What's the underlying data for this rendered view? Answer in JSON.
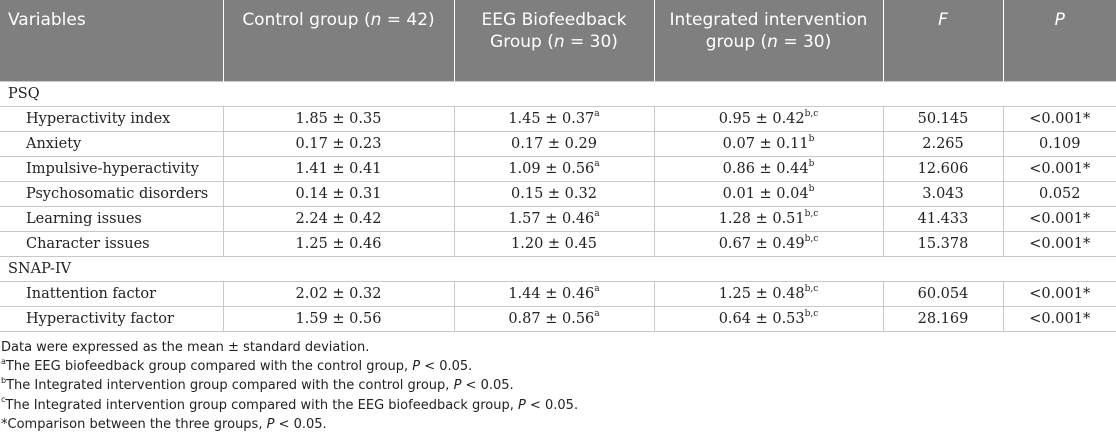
{
  "header": {
    "variables": "Variables",
    "control_label": "Control group (",
    "control_n": "n",
    "control_count": " = 42)",
    "eeg_label": "EEG Biofeedback Group (",
    "eeg_n": "n",
    "eeg_count": " = 30)",
    "integrated_label": "Integrated intervention group (",
    "integrated_n": "n",
    "integrated_count": " = 30)",
    "f": "F",
    "p": "P"
  },
  "sections": [
    {
      "title": "PSQ",
      "rows": [
        {
          "name": "Hyperactivity index",
          "control": "1.85 ± 0.35",
          "control_sup": "",
          "eeg": "1.45 ± 0.37",
          "eeg_sup": "a",
          "integrated": "0.95 ± 0.42",
          "integrated_sup": "b,c",
          "f": "50.145",
          "p": "<0.001*"
        },
        {
          "name": "Anxiety",
          "control": "0.17 ± 0.23",
          "control_sup": "",
          "eeg": "0.17 ± 0.29",
          "eeg_sup": "",
          "integrated": "0.07 ± 0.11",
          "integrated_sup": "b",
          "f": "2.265",
          "p": "0.109"
        },
        {
          "name": "Impulsive-hyperactivity",
          "control": "1.41 ± 0.41",
          "control_sup": "",
          "eeg": "1.09 ± 0.56",
          "eeg_sup": "a",
          "integrated": "0.86 ± 0.44",
          "integrated_sup": "b",
          "f": "12.606",
          "p": "<0.001*"
        },
        {
          "name": "Psychosomatic disorders",
          "control": "0.14 ± 0.31",
          "control_sup": "",
          "eeg": "0.15 ± 0.32",
          "eeg_sup": "",
          "integrated": "0.01 ± 0.04",
          "integrated_sup": "b",
          "f": "3.043",
          "p": "0.052"
        },
        {
          "name": "Learning issues",
          "control": "2.24 ± 0.42",
          "control_sup": "",
          "eeg": "1.57 ± 0.46",
          "eeg_sup": "a",
          "integrated": "1.28 ± 0.51",
          "integrated_sup": "b,c",
          "f": "41.433",
          "p": "<0.001*"
        },
        {
          "name": "Character issues",
          "control": "1.25 ± 0.46",
          "control_sup": "",
          "eeg": "1.20 ± 0.45",
          "eeg_sup": "",
          "integrated": "0.67 ± 0.49",
          "integrated_sup": "b,c",
          "f": "15.378",
          "p": "<0.001*"
        }
      ]
    },
    {
      "title": "SNAP-IV",
      "rows": [
        {
          "name": "Inattention factor",
          "control": "2.02 ± 0.32",
          "control_sup": "",
          "eeg": "1.44 ± 0.46",
          "eeg_sup": "a",
          "integrated": "1.25 ± 0.48",
          "integrated_sup": "b,c",
          "f": "60.054",
          "p": "<0.001*"
        },
        {
          "name": "Hyperactivity factor",
          "control": "1.59 ± 0.56",
          "control_sup": "",
          "eeg": "0.87 ± 0.56",
          "eeg_sup": "a",
          "integrated": "0.64 ± 0.53",
          "integrated_sup": "b,c",
          "f": "28.169",
          "p": "<0.001*"
        }
      ]
    }
  ],
  "notes": {
    "n1": "Data were expressed as the mean ± standard deviation.",
    "n2_sup": "a",
    "n2_text": "The EEG biofeedback group compared with the control group, ",
    "n3_sup": "b",
    "n3_text": "The Integrated intervention group compared with the control group, ",
    "n4_sup": "c",
    "n4_text": "The Integrated intervention group compared with the EEG biofeedback group, ",
    "n5_text": "*Comparison between the three groups, ",
    "p_symbol": "P",
    "p_threshold": " < 0.05."
  }
}
